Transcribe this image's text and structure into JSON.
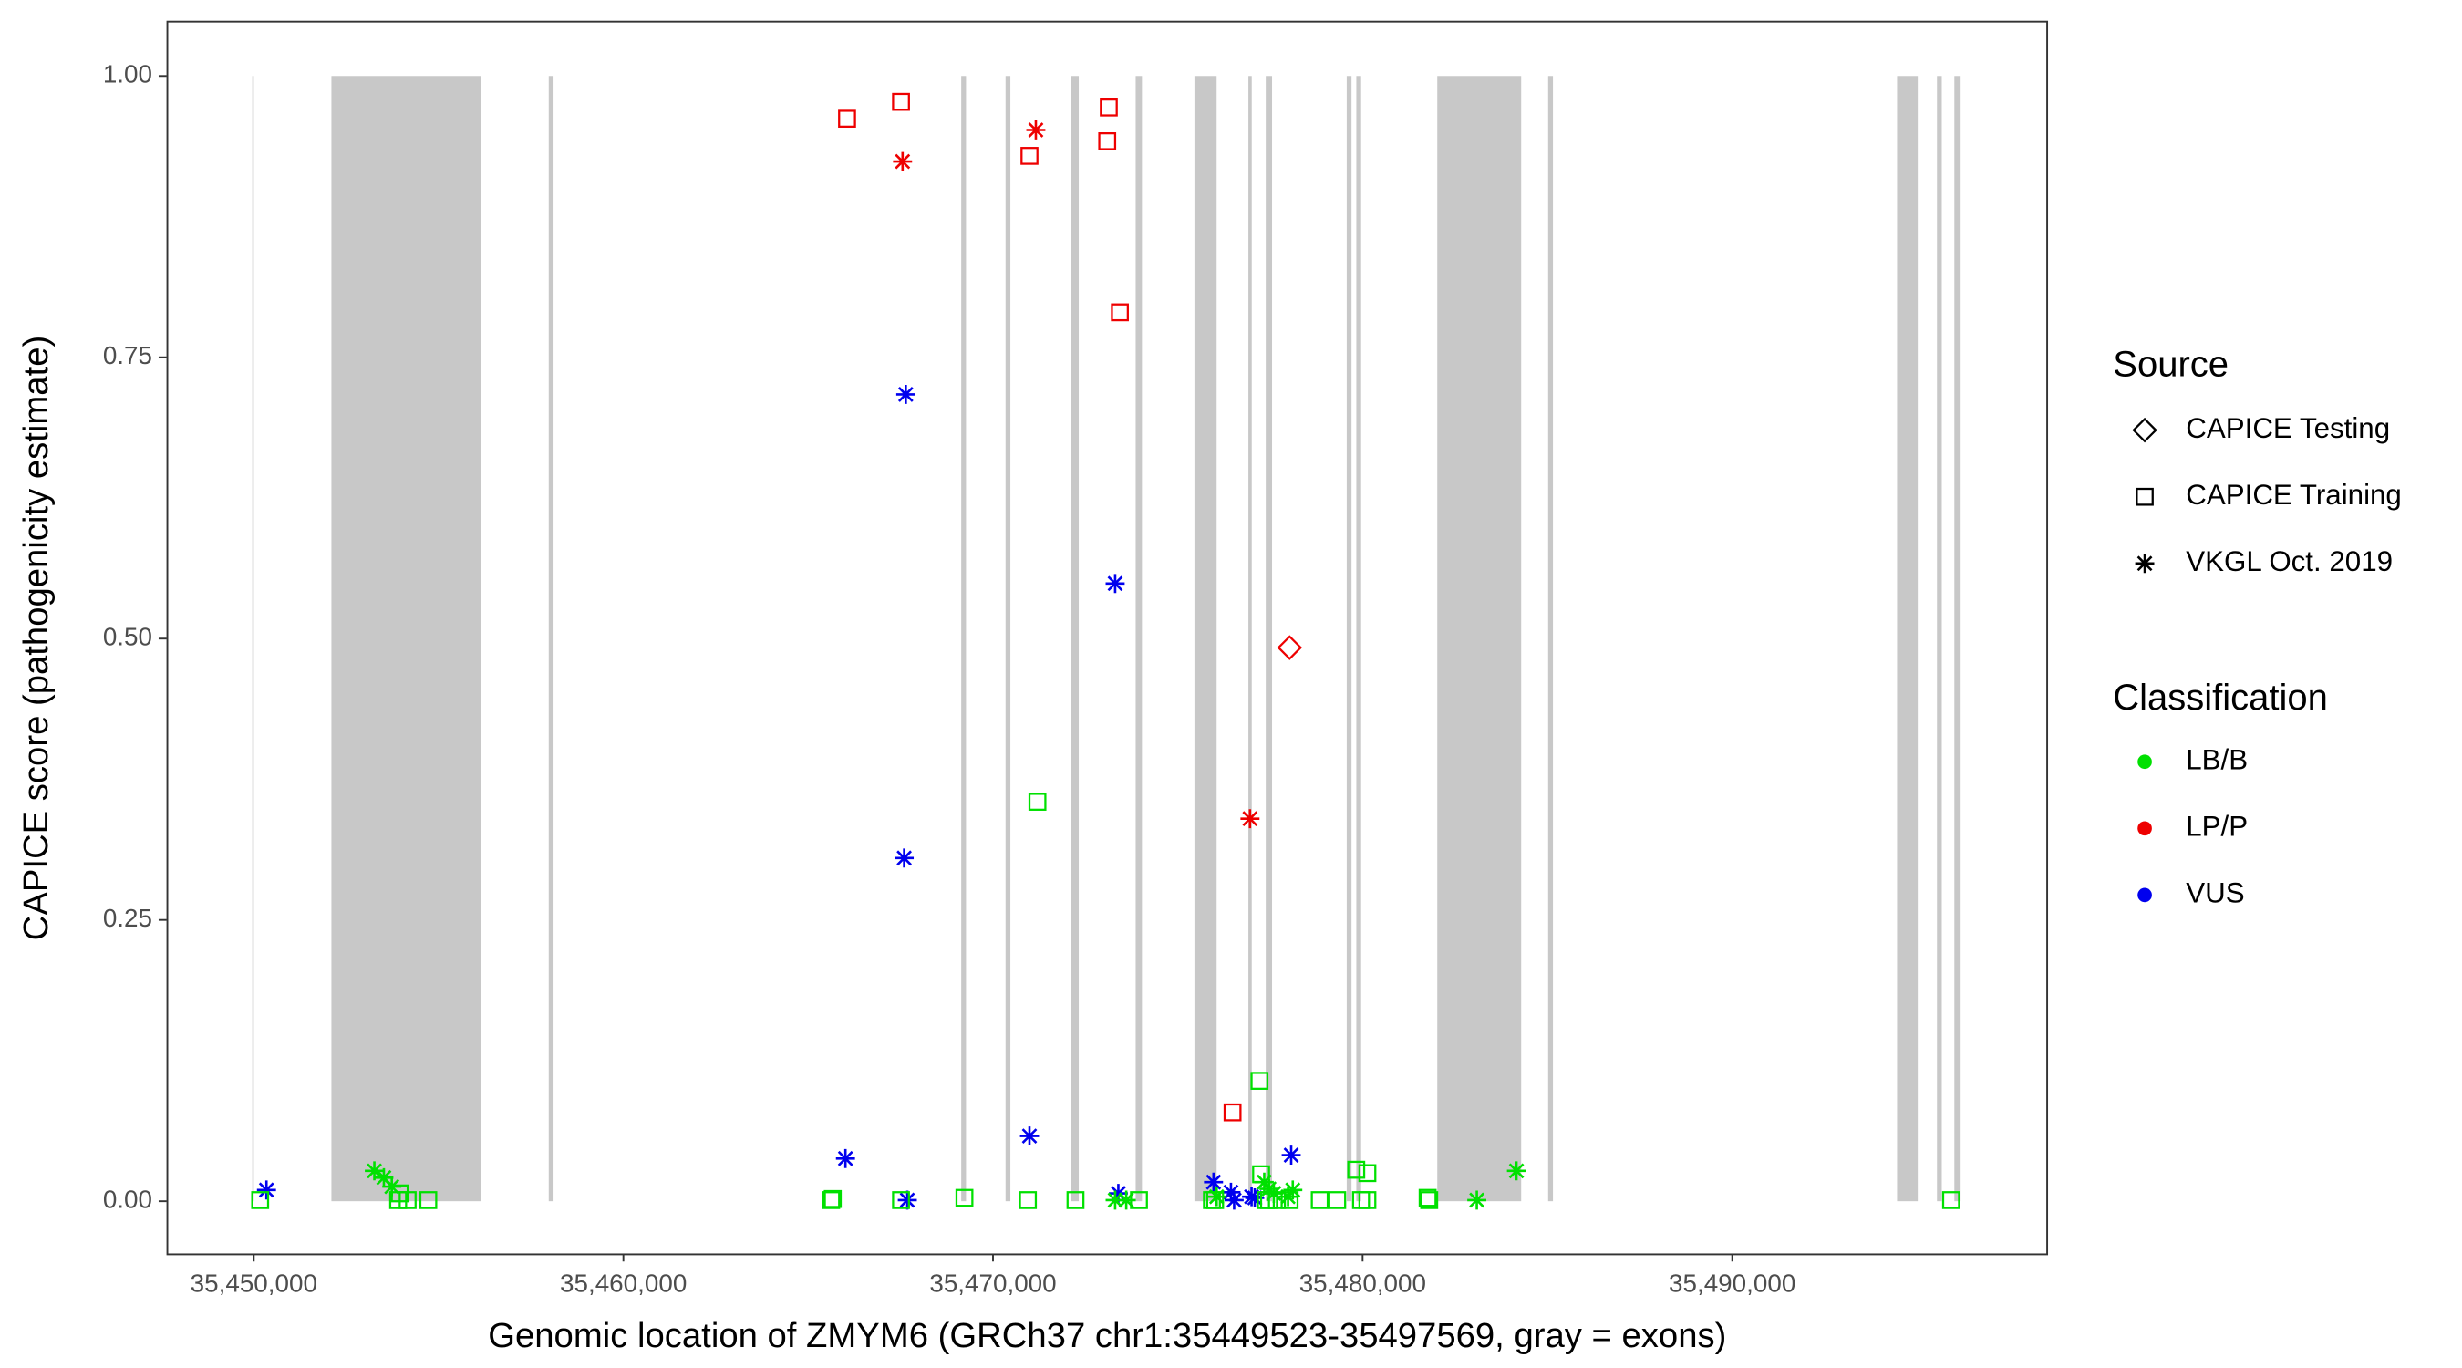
{
  "chart_data": {
    "type": "scatter",
    "x_label": "Genomic location of ZMYM6 (GRCh37 chr1:35449523-35497569, gray = exons)",
    "y_label": "CAPICE score (pathogenicity estimate)",
    "xlim": [
      35447640,
      35498500
    ],
    "ylim": [
      -0.0465,
      1.049
    ],
    "xticks": [
      {
        "value": 35450000,
        "label": "35,450,000"
      },
      {
        "value": 35460000,
        "label": "35,460,000"
      },
      {
        "value": 35470000,
        "label": "35,470,000"
      },
      {
        "value": 35480000,
        "label": "35,480,000"
      },
      {
        "value": 35490000,
        "label": "35,490,000"
      }
    ],
    "yticks": [
      {
        "value": 0,
        "label": "0.00"
      },
      {
        "value": 0.25,
        "label": "0.25"
      },
      {
        "value": 0.5,
        "label": "0.50"
      },
      {
        "value": 0.75,
        "label": "0.75"
      },
      {
        "value": 1,
        "label": "1.00"
      }
    ],
    "exon_color": "#c8c8c8",
    "exon_span": [
      0,
      1
    ],
    "exons": [
      [
        35449960,
        35450000
      ],
      [
        35452100,
        35456140
      ],
      [
        35457980,
        35458110
      ],
      [
        35469140,
        35469270
      ],
      [
        35470340,
        35470470
      ],
      [
        35472100,
        35472320
      ],
      [
        35473860,
        35474030
      ],
      [
        35475450,
        35476050
      ],
      [
        35476910,
        35477000
      ],
      [
        35477380,
        35477550
      ],
      [
        35479570,
        35479700
      ],
      [
        35479830,
        35479960
      ],
      [
        35482020,
        35484290
      ],
      [
        35485020,
        35485150
      ],
      [
        35494460,
        35495020
      ],
      [
        35495540,
        35495670
      ],
      [
        35496010,
        35496180
      ]
    ],
    "shape_legend": {
      "title": "Source",
      "items": [
        {
          "name": "CAPICE Testing",
          "shape": "diamond"
        },
        {
          "name": "CAPICE Training",
          "shape": "square"
        },
        {
          "name": "VKGL Oct. 2019",
          "shape": "asterisk"
        }
      ]
    },
    "color_legend": {
      "title": "Classification",
      "items": [
        {
          "name": "LB/B",
          "color": "#00e000"
        },
        {
          "name": "LP/P",
          "color": "#ee0000"
        },
        {
          "name": "VUS",
          "color": "#0000ee"
        }
      ]
    },
    "points": [
      {
        "x": 35466051,
        "y": 0.962,
        "source": "CAPICE Training",
        "classification": "LP/P"
      },
      {
        "x": 35467511,
        "y": 0.977,
        "source": "CAPICE Training",
        "classification": "LP/P"
      },
      {
        "x": 35470987,
        "y": 0.929,
        "source": "CAPICE Training",
        "classification": "LP/P"
      },
      {
        "x": 35473133,
        "y": 0.972,
        "source": "CAPICE Training",
        "classification": "LP/P"
      },
      {
        "x": 35473090,
        "y": 0.942,
        "source": "CAPICE Training",
        "classification": "LP/P"
      },
      {
        "x": 35473433,
        "y": 0.79,
        "source": "CAPICE Training",
        "classification": "LP/P"
      },
      {
        "x": 35476481,
        "y": 0.079,
        "source": "CAPICE Training",
        "classification": "LP/P"
      },
      {
        "x": 35467553,
        "y": 0.924,
        "source": "VKGL Oct. 2019",
        "classification": "LP/P"
      },
      {
        "x": 35471159,
        "y": 0.952,
        "source": "VKGL Oct. 2019",
        "classification": "LP/P"
      },
      {
        "x": 35476953,
        "y": 0.34,
        "source": "VKGL Oct. 2019",
        "classification": "LP/P"
      },
      {
        "x": 35478025,
        "y": 0.492,
        "source": "CAPICE Testing",
        "classification": "LP/P"
      },
      {
        "x": 35450343,
        "y": 0.01,
        "source": "VKGL Oct. 2019",
        "classification": "VUS"
      },
      {
        "x": 35467640,
        "y": 0.717,
        "source": "VKGL Oct. 2019",
        "classification": "VUS"
      },
      {
        "x": 35473305,
        "y": 0.549,
        "source": "VKGL Oct. 2019",
        "classification": "VUS"
      },
      {
        "x": 35467597,
        "y": 0.305,
        "source": "VKGL Oct. 2019",
        "classification": "VUS"
      },
      {
        "x": 35466008,
        "y": 0.038,
        "source": "VKGL Oct. 2019",
        "classification": "VUS"
      },
      {
        "x": 35470987,
        "y": 0.058,
        "source": "VKGL Oct. 2019",
        "classification": "VUS"
      },
      {
        "x": 35467682,
        "y": 0.001,
        "source": "VKGL Oct. 2019",
        "classification": "VUS"
      },
      {
        "x": 35473391,
        "y": 0.007,
        "source": "VKGL Oct. 2019",
        "classification": "VUS"
      },
      {
        "x": 35475966,
        "y": 0.017,
        "source": "VKGL Oct. 2019",
        "classification": "VUS"
      },
      {
        "x": 35476438,
        "y": 0.008,
        "source": "VKGL Oct. 2019",
        "classification": "VUS"
      },
      {
        "x": 35476524,
        "y": 0.001,
        "source": "VKGL Oct. 2019",
        "classification": "VUS"
      },
      {
        "x": 35476996,
        "y": 0.004,
        "source": "VKGL Oct. 2019",
        "classification": "VUS"
      },
      {
        "x": 35477082,
        "y": 0.003,
        "source": "VKGL Oct. 2019",
        "classification": "VUS"
      },
      {
        "x": 35478068,
        "y": 0.041,
        "source": "VKGL Oct. 2019",
        "classification": "VUS"
      },
      {
        "x": 35450172,
        "y": 0.001,
        "source": "CAPICE Training",
        "classification": "LB/B"
      },
      {
        "x": 35453949,
        "y": 0.007,
        "source": "CAPICE Training",
        "classification": "LB/B"
      },
      {
        "x": 35453906,
        "y": 0.001,
        "source": "CAPICE Training",
        "classification": "LB/B"
      },
      {
        "x": 35454163,
        "y": 0.001,
        "source": "CAPICE Training",
        "classification": "LB/B"
      },
      {
        "x": 35454721,
        "y": 0.001,
        "source": "CAPICE Training",
        "classification": "LB/B"
      },
      {
        "x": 35465622,
        "y": 0.001,
        "source": "CAPICE Training",
        "classification": "LB/B"
      },
      {
        "x": 35465665,
        "y": 0.002,
        "source": "CAPICE Training",
        "classification": "LB/B"
      },
      {
        "x": 35467511,
        "y": 0.001,
        "source": "CAPICE Training",
        "classification": "LB/B"
      },
      {
        "x": 35469227,
        "y": 0.003,
        "source": "CAPICE Training",
        "classification": "LB/B"
      },
      {
        "x": 35471202,
        "y": 0.355,
        "source": "CAPICE Training",
        "classification": "LB/B"
      },
      {
        "x": 35470944,
        "y": 0.001,
        "source": "CAPICE Training",
        "classification": "LB/B"
      },
      {
        "x": 35472232,
        "y": 0.001,
        "source": "CAPICE Training",
        "classification": "LB/B"
      },
      {
        "x": 35473949,
        "y": 0.001,
        "source": "CAPICE Training",
        "classification": "LB/B"
      },
      {
        "x": 35475923,
        "y": 0.001,
        "source": "CAPICE Training",
        "classification": "LB/B"
      },
      {
        "x": 35476009,
        "y": 0.001,
        "source": "CAPICE Training",
        "classification": "LB/B"
      },
      {
        "x": 35477210,
        "y": 0.107,
        "source": "CAPICE Training",
        "classification": "LB/B"
      },
      {
        "x": 35477253,
        "y": 0.024,
        "source": "CAPICE Training",
        "classification": "LB/B"
      },
      {
        "x": 35477382,
        "y": 0.001,
        "source": "CAPICE Training",
        "classification": "LB/B"
      },
      {
        "x": 35477468,
        "y": 0.001,
        "source": "CAPICE Training",
        "classification": "LB/B"
      },
      {
        "x": 35477682,
        "y": 0.001,
        "source": "CAPICE Training",
        "classification": "LB/B"
      },
      {
        "x": 35478025,
        "y": 0.001,
        "source": "CAPICE Training",
        "classification": "LB/B"
      },
      {
        "x": 35478841,
        "y": 0.001,
        "source": "CAPICE Training",
        "classification": "LB/B"
      },
      {
        "x": 35479313,
        "y": 0.001,
        "source": "CAPICE Training",
        "classification": "LB/B"
      },
      {
        "x": 35479828,
        "y": 0.028,
        "source": "CAPICE Training",
        "classification": "LB/B"
      },
      {
        "x": 35480129,
        "y": 0.025,
        "source": "CAPICE Training",
        "classification": "LB/B"
      },
      {
        "x": 35479957,
        "y": 0.001,
        "source": "CAPICE Training",
        "classification": "LB/B"
      },
      {
        "x": 35480129,
        "y": 0.001,
        "source": "CAPICE Training",
        "classification": "LB/B"
      },
      {
        "x": 35481759,
        "y": 0.003,
        "source": "CAPICE Training",
        "classification": "LB/B"
      },
      {
        "x": 35481802,
        "y": 0.001,
        "source": "CAPICE Training",
        "classification": "LB/B"
      },
      {
        "x": 35495922,
        "y": 0.001,
        "source": "CAPICE Training",
        "classification": "LB/B"
      },
      {
        "x": 35453262,
        "y": 0.027,
        "source": "VKGL Oct. 2019",
        "classification": "LB/B"
      },
      {
        "x": 35453519,
        "y": 0.021,
        "source": "VKGL Oct. 2019",
        "classification": "LB/B"
      },
      {
        "x": 35453734,
        "y": 0.013,
        "source": "VKGL Oct. 2019",
        "classification": "LB/B"
      },
      {
        "x": 35473305,
        "y": 0.001,
        "source": "VKGL Oct. 2019",
        "classification": "LB/B"
      },
      {
        "x": 35473605,
        "y": 0.001,
        "source": "VKGL Oct. 2019",
        "classification": "LB/B"
      },
      {
        "x": 35476052,
        "y": 0.004,
        "source": "VKGL Oct. 2019",
        "classification": "LB/B"
      },
      {
        "x": 35477339,
        "y": 0.017,
        "source": "VKGL Oct. 2019",
        "classification": "LB/B"
      },
      {
        "x": 35477468,
        "y": 0.011,
        "source": "VKGL Oct. 2019",
        "classification": "LB/B"
      },
      {
        "x": 35477597,
        "y": 0.007,
        "source": "VKGL Oct. 2019",
        "classification": "LB/B"
      },
      {
        "x": 35477983,
        "y": 0.004,
        "source": "VKGL Oct. 2019",
        "classification": "LB/B"
      },
      {
        "x": 35478111,
        "y": 0.01,
        "source": "VKGL Oct. 2019",
        "classification": "LB/B"
      },
      {
        "x": 35483090,
        "y": 0.001,
        "source": "VKGL Oct. 2019",
        "classification": "LB/B"
      },
      {
        "x": 35484163,
        "y": 0.027,
        "source": "VKGL Oct. 2019",
        "classification": "LB/B"
      }
    ]
  }
}
